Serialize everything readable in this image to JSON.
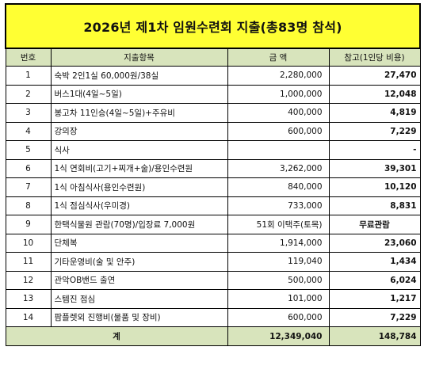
{
  "title": "2026년 제1차 임원수련회 지출(총83명 참석)",
  "headers": {
    "no": "번호",
    "item": "지출항목",
    "amount": "금  액",
    "per_person": "참고(1인당 비용)"
  },
  "rows": [
    {
      "no": "1",
      "item": "숙박 2인1실 60,000원/38실",
      "amount": "2,280,000",
      "per_person": "27,470"
    },
    {
      "no": "2",
      "item": "버스1대(4일~5일)",
      "amount": "1,000,000",
      "per_person": "12,048"
    },
    {
      "no": "3",
      "item": "봉고차 11인승(4일~5일)+주유비",
      "amount": "400,000",
      "per_person": "4,819"
    },
    {
      "no": "4",
      "item": "강의장",
      "amount": "600,000",
      "per_person": "7,229"
    },
    {
      "no": "5",
      "item": "식사",
      "amount": "",
      "per_person": "-"
    },
    {
      "no": "6",
      "item": "1식 연회비(고기+찌개+술)/용인수련원",
      "amount": "3,262,000",
      "per_person": "39,301"
    },
    {
      "no": "7",
      "item": "1식 아침식사(용인수련원)",
      "amount": "840,000",
      "per_person": "10,120"
    },
    {
      "no": "8",
      "item": "1식 점심식사(우미경)",
      "amount": "733,000",
      "per_person": "8,831"
    },
    {
      "no": "9",
      "item": "한택식물원 관람(70명)/입장료 7,000원",
      "amount": "51회 이택주(토목)",
      "per_person": "무료관람"
    },
    {
      "no": "10",
      "item": "단체복",
      "amount": "1,914,000",
      "per_person": "23,060"
    },
    {
      "no": "11",
      "item": "기타운영비(술 및 안주)",
      "amount": "119,040",
      "per_person": "1,434"
    },
    {
      "no": "12",
      "item": "관악OB밴드 출연",
      "amount": "500,000",
      "per_person": "6,024"
    },
    {
      "no": "13",
      "item": "스템진 점심",
      "amount": "101,000",
      "per_person": "1,217"
    },
    {
      "no": "14",
      "item": "팜플렛외 진행비(물품 및 장비)",
      "amount": "600,000",
      "per_person": "7,229"
    }
  ],
  "total": {
    "label": "계",
    "amount": "12,349,040",
    "per_person": "148,784"
  },
  "colors": {
    "title_bg": "#ffff33",
    "header_bg": "#d8e4bc"
  }
}
